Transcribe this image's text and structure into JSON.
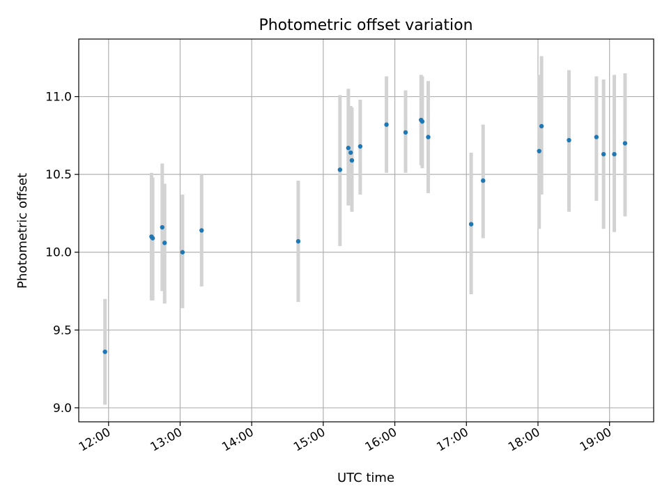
{
  "chart_data": {
    "type": "scatter",
    "title": "Photometric offset variation",
    "xlabel": "UTC time",
    "ylabel": "Photometric offset",
    "x_unit": "time of day (HH:MM, UTC)",
    "xlim": [
      "11:35",
      "19:37"
    ],
    "ylim": [
      8.91,
      11.37
    ],
    "x_ticks": [
      "12:00",
      "13:00",
      "14:00",
      "15:00",
      "16:00",
      "17:00",
      "18:00",
      "19:00"
    ],
    "y_ticks": [
      9.0,
      9.5,
      10.0,
      10.5,
      11.0
    ],
    "y_tick_labels": [
      "9.0",
      "9.5",
      "10.0",
      "10.5",
      "11.0"
    ],
    "x_tick_rotation_deg": 30,
    "grid": true,
    "legend": "none",
    "errorbar_color": "#d3d3d3",
    "marker_color": "#1f77b4",
    "points": [
      {
        "x": "11:57",
        "y": 9.36,
        "ylo": 9.02,
        "yhi": 9.7
      },
      {
        "x": "12:36",
        "y": 10.1,
        "ylo": 9.69,
        "yhi": 10.51
      },
      {
        "x": "12:37",
        "y": 10.09,
        "ylo": 9.69,
        "yhi": 10.48
      },
      {
        "x": "12:45",
        "y": 10.16,
        "ylo": 9.75,
        "yhi": 10.57
      },
      {
        "x": "12:47",
        "y": 10.06,
        "ylo": 9.67,
        "yhi": 10.44
      },
      {
        "x": "13:02",
        "y": 10.0,
        "ylo": 9.64,
        "yhi": 10.37
      },
      {
        "x": "13:18",
        "y": 10.14,
        "ylo": 9.78,
        "yhi": 10.5
      },
      {
        "x": "14:39",
        "y": 10.07,
        "ylo": 9.68,
        "yhi": 10.46
      },
      {
        "x": "15:14",
        "y": 10.53,
        "ylo": 10.04,
        "yhi": 11.01
      },
      {
        "x": "15:21",
        "y": 10.67,
        "ylo": 10.3,
        "yhi": 11.05
      },
      {
        "x": "15:23",
        "y": 10.64,
        "ylo": 10.34,
        "yhi": 10.94
      },
      {
        "x": "15:24",
        "y": 10.59,
        "ylo": 10.26,
        "yhi": 10.93
      },
      {
        "x": "15:31",
        "y": 10.68,
        "ylo": 10.37,
        "yhi": 10.98
      },
      {
        "x": "15:53",
        "y": 10.82,
        "ylo": 10.51,
        "yhi": 11.13
      },
      {
        "x": "16:09",
        "y": 10.77,
        "ylo": 10.51,
        "yhi": 11.04
      },
      {
        "x": "16:22",
        "y": 10.85,
        "ylo": 10.56,
        "yhi": 11.14
      },
      {
        "x": "16:23",
        "y": 10.84,
        "ylo": 10.54,
        "yhi": 11.13
      },
      {
        "x": "16:28",
        "y": 10.74,
        "ylo": 10.38,
        "yhi": 11.1
      },
      {
        "x": "17:04",
        "y": 10.18,
        "ylo": 9.73,
        "yhi": 10.64
      },
      {
        "x": "17:14",
        "y": 10.46,
        "ylo": 10.09,
        "yhi": 10.82
      },
      {
        "x": "18:01",
        "y": 10.65,
        "ylo": 10.15,
        "yhi": 11.14
      },
      {
        "x": "18:03",
        "y": 10.81,
        "ylo": 10.37,
        "yhi": 11.26
      },
      {
        "x": "18:26",
        "y": 10.72,
        "ylo": 10.26,
        "yhi": 11.17
      },
      {
        "x": "18:49",
        "y": 10.74,
        "ylo": 10.33,
        "yhi": 11.13
      },
      {
        "x": "18:55",
        "y": 10.63,
        "ylo": 10.15,
        "yhi": 11.11
      },
      {
        "x": "19:04",
        "y": 10.63,
        "ylo": 10.13,
        "yhi": 11.14
      },
      {
        "x": "19:13",
        "y": 10.7,
        "ylo": 10.23,
        "yhi": 11.15
      }
    ]
  }
}
